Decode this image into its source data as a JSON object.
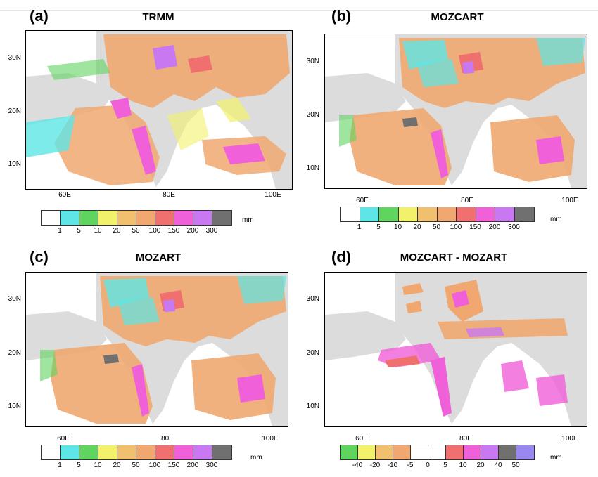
{
  "panels": [
    {
      "letter": "(a)",
      "title": "TRMM"
    },
    {
      "letter": "(b)",
      "title": "MOZCART"
    },
    {
      "letter": "(c)",
      "title": "MOZART"
    },
    {
      "letter": "(d)",
      "title": "MOZCART - MOZART"
    }
  ],
  "axes": {
    "lat_labels": [
      "30N",
      "20N",
      "10N"
    ],
    "lon_labels": [
      "60E",
      "80E",
      "100E"
    ]
  },
  "colorbar_precip": {
    "units": "mm",
    "labels": [
      "1",
      "5",
      "10",
      "20",
      "50",
      "100",
      "150",
      "200",
      "300"
    ],
    "colors": [
      "#ffffff",
      "#5ee6e6",
      "#5fd45f",
      "#f2f26a",
      "#f0c06e",
      "#f0a870",
      "#f07070",
      "#f060d8",
      "#c878f0",
      "#707070"
    ]
  },
  "colorbar_diff": {
    "units": "mm",
    "labels": [
      "-40",
      "-20",
      "-10",
      "-5",
      "0",
      "5",
      "10",
      "20",
      "40",
      "50"
    ],
    "colors": [
      "#5fd45f",
      "#f2f26a",
      "#f0c06e",
      "#f0a870",
      "#ffffff",
      "#ffffff",
      "#f07070",
      "#f060d8",
      "#c878f0",
      "#707070",
      "#9a88f0"
    ]
  }
}
